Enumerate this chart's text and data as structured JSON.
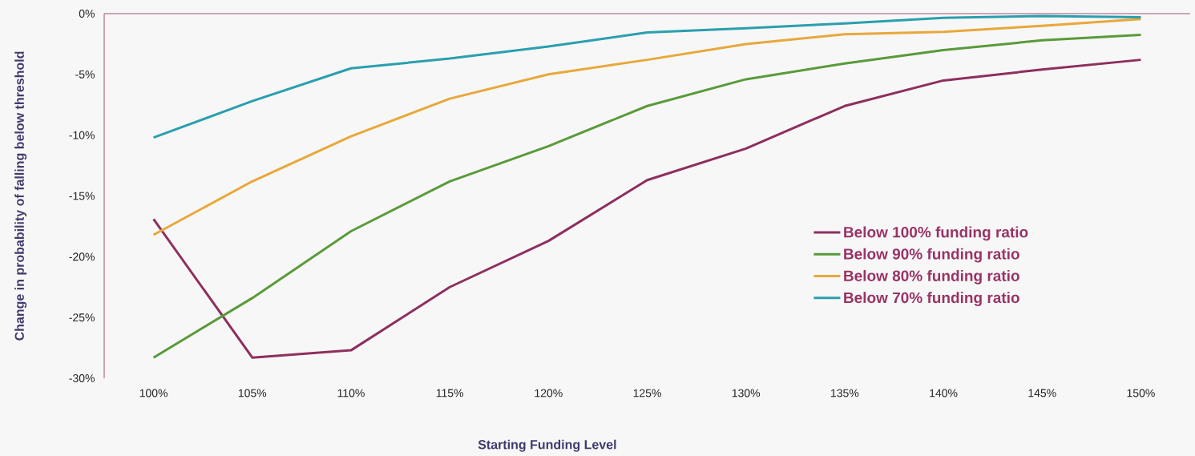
{
  "chart_data": {
    "type": "line",
    "xlabel": "Starting Funding Level",
    "ylabel": "Change in probability of falling below threshold",
    "categories": [
      "100%",
      "105%",
      "110%",
      "115%",
      "120%",
      "125%",
      "130%",
      "135%",
      "140%",
      "145%",
      "150%"
    ],
    "ylim": [
      -30,
      0
    ],
    "yticks": [
      {
        "value": 0,
        "label": "0%"
      },
      {
        "value": -5,
        "label": "-5%"
      },
      {
        "value": -10,
        "label": "-10%"
      },
      {
        "value": -15,
        "label": "-15%"
      },
      {
        "value": -20,
        "label": "-20%"
      },
      {
        "value": -25,
        "label": "-25%"
      },
      {
        "value": -30,
        "label": "-30%"
      }
    ],
    "legend": "right",
    "series": [
      {
        "name": "Below 100% funding ratio",
        "color": "#8e2f5e",
        "values": [
          -16.9,
          -28.3,
          -27.7,
          -22.5,
          -18.7,
          -13.7,
          -11.1,
          -7.6,
          -5.5,
          -4.6,
          -3.8
        ]
      },
      {
        "name": "Below 90% funding ratio",
        "color": "#5a9a3a",
        "values": [
          -28.3,
          -23.4,
          -17.9,
          -13.8,
          -10.9,
          -7.6,
          -5.4,
          -4.1,
          -3.0,
          -2.2,
          -1.75
        ]
      },
      {
        "name": "Below 80% funding ratio",
        "color": "#e8a83a",
        "values": [
          -18.2,
          -13.8,
          -10.1,
          -7.0,
          -5.0,
          -3.8,
          -2.5,
          -1.7,
          -1.5,
          -1.0,
          -0.45
        ]
      },
      {
        "name": "Below 70% funding ratio",
        "color": "#2a9fae",
        "values": [
          -10.2,
          -7.2,
          -4.5,
          -3.7,
          -2.7,
          -1.55,
          -1.2,
          -0.8,
          -0.35,
          -0.2,
          -0.3
        ]
      }
    ]
  }
}
